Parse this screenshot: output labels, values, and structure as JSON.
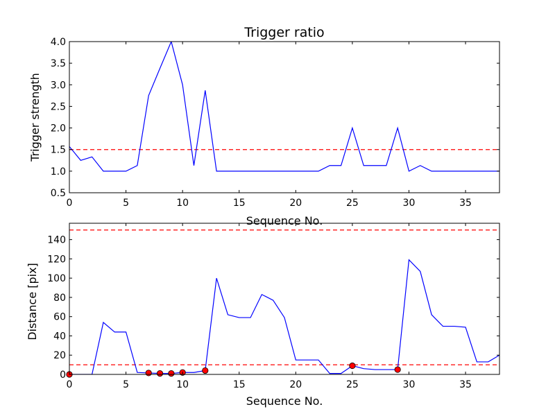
{
  "chart_data": [
    {
      "type": "line",
      "title": "Trigger ratio",
      "xlabel": "Sequence No.",
      "ylabel": "Trigger strength",
      "xlim": [
        0,
        38
      ],
      "ylim": [
        0.5,
        4.0
      ],
      "xticks": [
        0,
        5,
        10,
        15,
        20,
        25,
        30,
        35
      ],
      "yticks": [
        0.5,
        1.0,
        1.5,
        2.0,
        2.5,
        3.0,
        3.5,
        4.0
      ],
      "xtick_labels": [
        "0",
        "5",
        "10",
        "15",
        "20",
        "25",
        "30",
        "35"
      ],
      "ytick_labels": [
        "0.5",
        "1.0",
        "1.5",
        "2.0",
        "2.5",
        "3.0",
        "3.5",
        "4.0"
      ],
      "grid": false,
      "series": [
        {
          "color": "#0000ff",
          "style": "solid",
          "x": [
            0,
            1,
            2,
            3,
            4,
            5,
            6,
            7,
            8,
            9,
            10,
            11,
            12,
            13,
            14,
            15,
            16,
            17,
            18,
            19,
            20,
            21,
            22,
            23,
            24,
            25,
            26,
            27,
            28,
            29,
            30,
            31,
            32,
            33,
            34,
            35,
            36,
            37,
            38
          ],
          "values": [
            1.57,
            1.25,
            1.33,
            1.0,
            1.0,
            1.0,
            1.13,
            2.75,
            3.38,
            4.0,
            3.0,
            1.13,
            2.87,
            1.0,
            1.0,
            1.0,
            1.0,
            1.0,
            1.0,
            1.0,
            1.0,
            1.0,
            1.0,
            1.13,
            1.13,
            2.0,
            1.13,
            1.13,
            1.13,
            2.0,
            1.0,
            1.13,
            1.0,
            1.0,
            1.0,
            1.0,
            1.0,
            1.0,
            1.0
          ]
        }
      ],
      "hlines": [
        {
          "y": 1.5,
          "color": "#ff0000",
          "style": "dashed"
        }
      ],
      "markers": []
    },
    {
      "type": "line",
      "title": "",
      "xlabel": "Sequence No.",
      "ylabel": "Distance [pix]",
      "xlim": [
        0,
        38
      ],
      "ylim": [
        0,
        157
      ],
      "xticks": [
        0,
        5,
        10,
        15,
        20,
        25,
        30,
        35
      ],
      "yticks": [
        0,
        20,
        40,
        60,
        80,
        100,
        120,
        140
      ],
      "xtick_labels": [
        "0",
        "5",
        "10",
        "15",
        "20",
        "25",
        "30",
        "35"
      ],
      "ytick_labels": [
        "0",
        "20",
        "40",
        "60",
        "80",
        "100",
        "120",
        "140"
      ],
      "grid": false,
      "series": [
        {
          "color": "#0000ff",
          "style": "solid",
          "x": [
            0,
            1,
            2,
            3,
            4,
            5,
            6,
            7,
            8,
            9,
            10,
            11,
            12,
            13,
            14,
            15,
            16,
            17,
            18,
            19,
            20,
            21,
            22,
            23,
            24,
            25,
            26,
            27,
            28,
            29,
            30,
            31,
            32,
            33,
            34,
            35,
            36,
            37,
            38
          ],
          "values": [
            0,
            0,
            0,
            54,
            44,
            44,
            2,
            1.5,
            1,
            1,
            2,
            2,
            4,
            100,
            62,
            59,
            59,
            83,
            77,
            59,
            15,
            15,
            15,
            1,
            1,
            9,
            6,
            5,
            5,
            5,
            119,
            107,
            62,
            50,
            50,
            49,
            13,
            13,
            20
          ]
        }
      ],
      "hlines": [
        {
          "y": 10,
          "color": "#ff0000",
          "style": "dashed"
        },
        {
          "y": 150,
          "color": "#ff0000",
          "style": "dashed"
        }
      ],
      "markers": {
        "color": "#ff0000",
        "x": [
          0,
          7,
          8,
          9,
          10,
          12,
          25,
          29
        ],
        "values": [
          0,
          1.5,
          1,
          1,
          2,
          4,
          9,
          5
        ]
      }
    }
  ]
}
